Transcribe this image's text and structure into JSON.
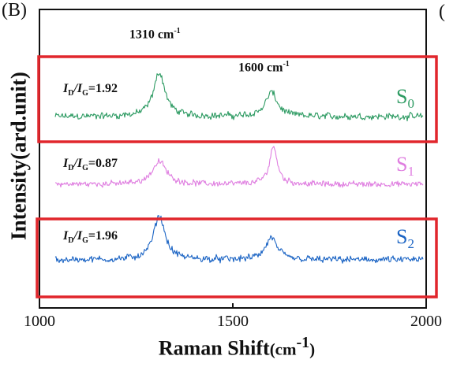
{
  "panel_label": "(B)",
  "side_fragment": "(",
  "colors": {
    "S0": "#2e9b63",
    "S1": "#df7ee0",
    "S2": "#1b64c4",
    "highlight": "#e1262c",
    "axis": "#111111"
  },
  "chart_data": {
    "type": "line",
    "xlabel": "Raman Shift",
    "xlabel_unit": "(cm",
    "xlabel_unit_exp": "-1",
    "xlabel_unit_close": ")",
    "ylabel": "Intensity(ard.unit)",
    "xlim": [
      1000,
      2000
    ],
    "x_ticks": [
      1000,
      1500,
      2000
    ],
    "x_tick_labels": [
      "1000",
      "1500",
      "2000"
    ],
    "y_ticks_shown": false,
    "grid": false,
    "peak_annotations": [
      {
        "position": 1310,
        "value": "1310 cm",
        "exp": "-1"
      },
      {
        "position": 1600,
        "value": "1600 cm",
        "exp": "-1"
      }
    ],
    "series": [
      {
        "id": "S0",
        "label_main": "S",
        "label_sub": "0",
        "ratio_prefix": "I",
        "ratio_d": "D",
        "ratio_slash": "/I",
        "ratio_g": "G",
        "ratio_value": "=1.92",
        "peaks": [
          {
            "x": 1310,
            "height": 1.0,
            "width": 18
          },
          {
            "x": 1600,
            "height": 0.55,
            "width": 18
          }
        ],
        "noise": 0.12,
        "highlighted": true
      },
      {
        "id": "S1",
        "label_main": "S",
        "label_sub": "1",
        "ratio_prefix": "I",
        "ratio_d": "D",
        "ratio_slash": "/I",
        "ratio_g": "G",
        "ratio_value": "=0.87",
        "peaks": [
          {
            "x": 1310,
            "height": 0.6,
            "width": 22
          },
          {
            "x": 1605,
            "height": 1.0,
            "width": 12
          }
        ],
        "noise": 0.12,
        "highlighted": false
      },
      {
        "id": "S2",
        "label_main": "S",
        "label_sub": "2",
        "ratio_prefix": "I",
        "ratio_d": "D",
        "ratio_slash": "/I",
        "ratio_g": "G",
        "ratio_value": "=1.96",
        "peaks": [
          {
            "x": 1310,
            "height": 1.0,
            "width": 18
          },
          {
            "x": 1600,
            "height": 0.5,
            "width": 18
          }
        ],
        "noise": 0.12,
        "highlighted": true
      }
    ]
  }
}
